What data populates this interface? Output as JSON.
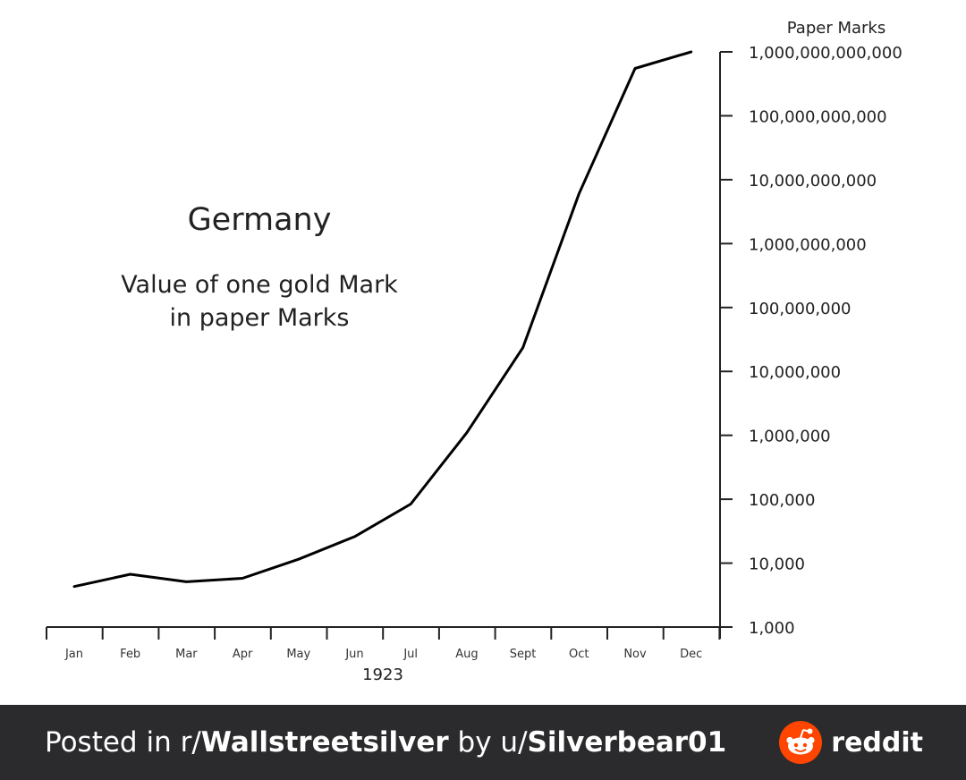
{
  "chart_data": {
    "type": "line",
    "title": "Germany",
    "subtitle_lines": [
      "Value of one gold Mark",
      "in paper Marks"
    ],
    "ylabel": "Paper Marks",
    "xlabel": "1923",
    "y_scale": "log",
    "ylim": [
      1000,
      1000000000000
    ],
    "y_ticks": [
      1000,
      10000,
      100000,
      1000000,
      10000000,
      100000000,
      1000000000,
      10000000000,
      100000000000,
      1000000000000
    ],
    "y_tick_labels": [
      "1,000",
      "10,000",
      "100,000",
      "1,000,000",
      "10,000,000",
      "100,000,000",
      "1,000,000,000",
      "10,000,000,000",
      "100,000,000,000",
      "1,000,000,000,000"
    ],
    "categories": [
      "Jan",
      "Feb",
      "Mar",
      "Apr",
      "May",
      "Jun",
      "Jul",
      "Aug",
      "Sept",
      "Oct",
      "Nov",
      "Dec"
    ],
    "series": [
      {
        "values": [
          4300,
          6700,
          5100,
          5800,
          11500,
          26000,
          84000,
          1100000,
          23500000,
          6000000000,
          550000000000,
          1000000000000
        ]
      }
    ],
    "line_color": "#000000",
    "grid": false
  },
  "footer": {
    "prefix": "Posted in r/",
    "subreddit": "Wallstreetsilver",
    "middle": " by u/",
    "username": "Silverbear01",
    "brand": "reddit",
    "background_color": "#2b2b2e",
    "logo_color": "#ff4500"
  }
}
